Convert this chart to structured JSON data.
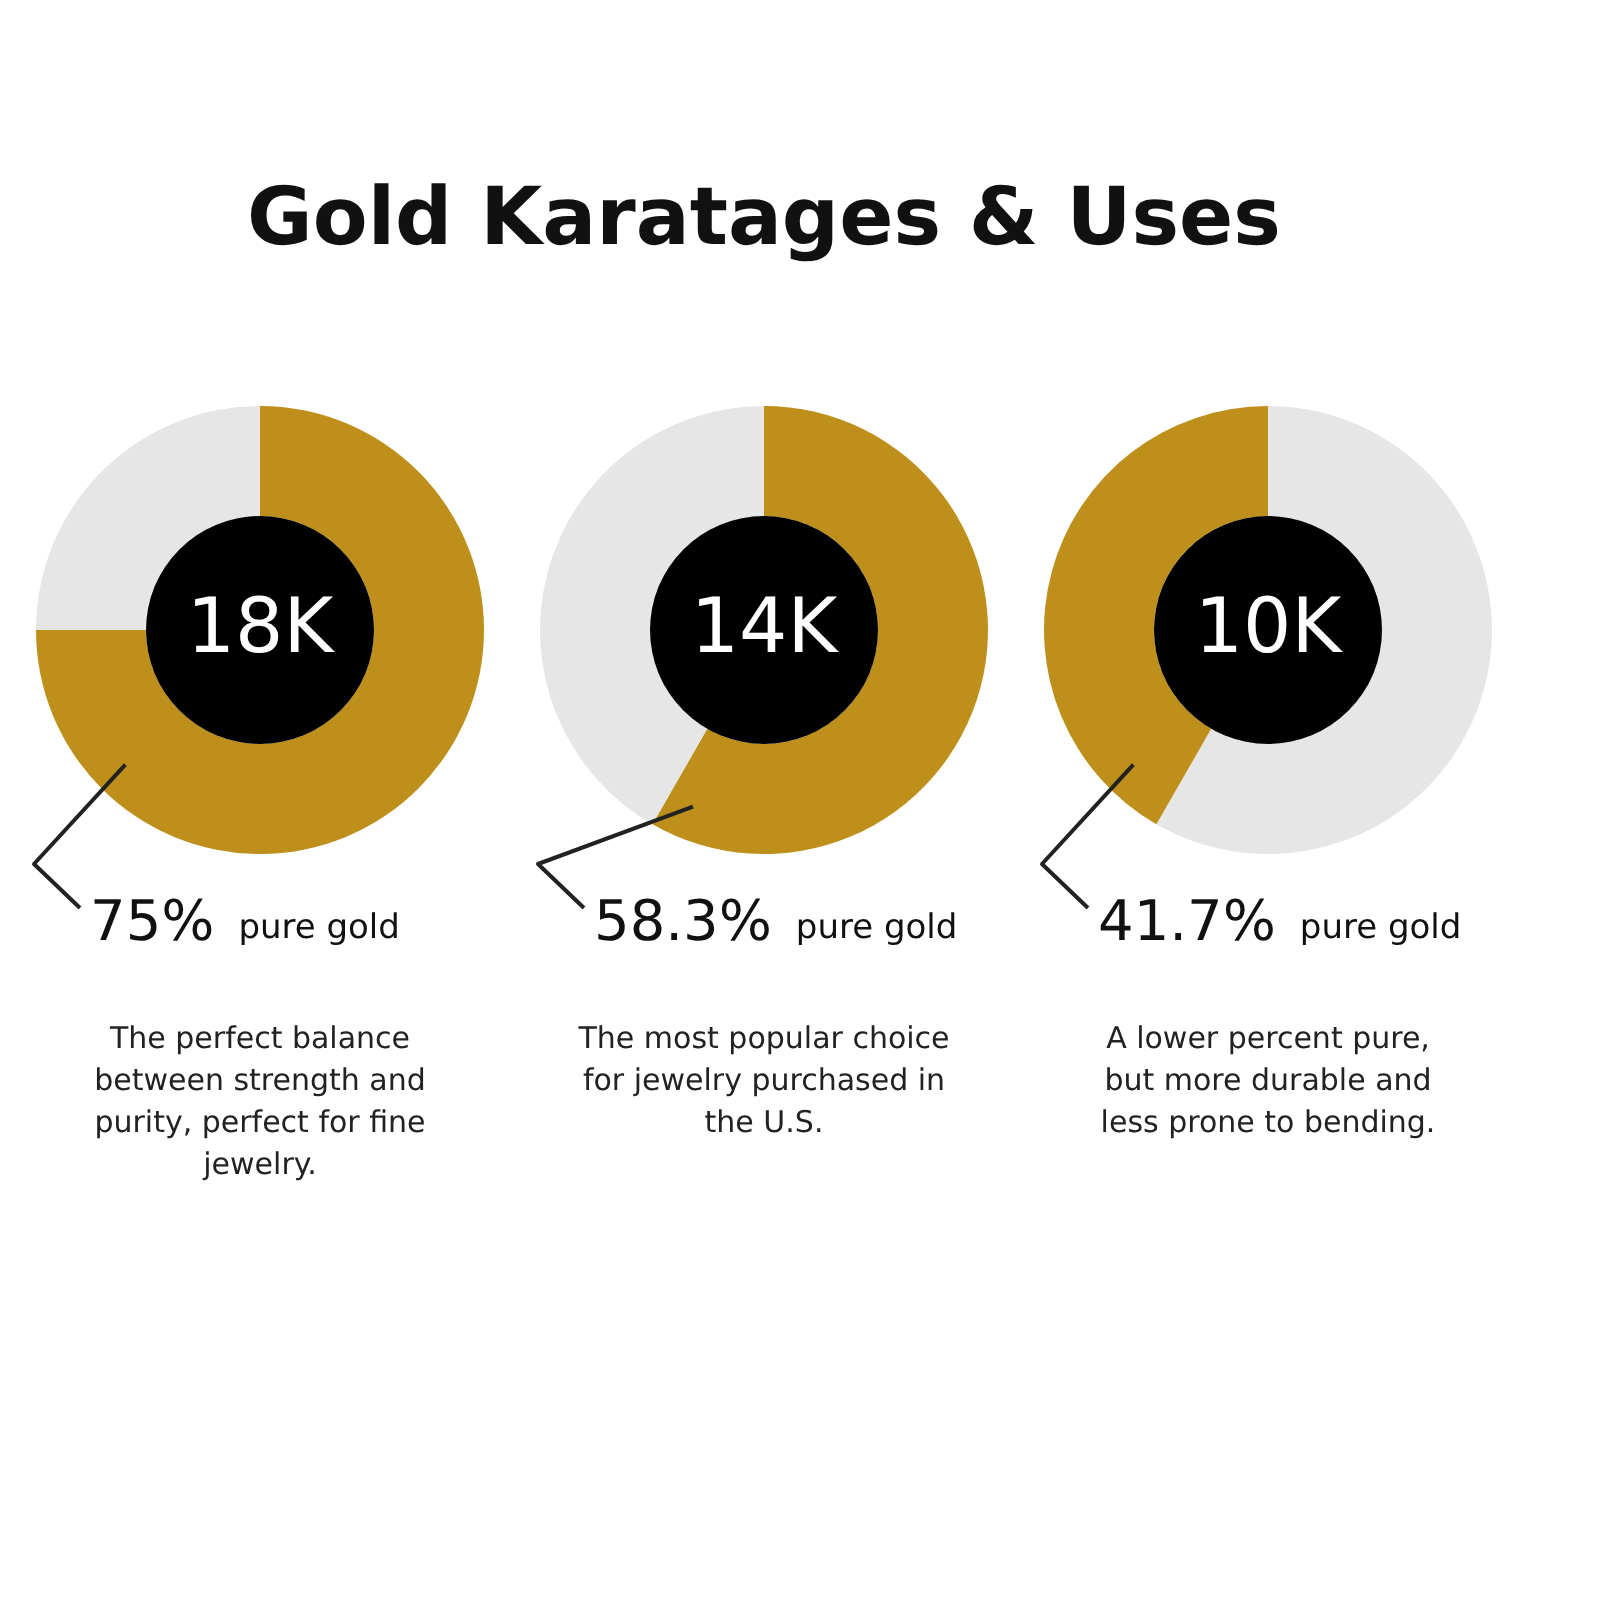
{
  "chart_data": [
    {
      "type": "donut",
      "title": "Gold Karatages & Uses",
      "subtitle": "18K",
      "categories": [
        "pure gold",
        null
      ],
      "values": [
        75,
        25
      ],
      "value_labels": [
        "75%",
        null
      ],
      "colors": [
        "#bf8f1c",
        "#e6e6e6"
      ],
      "annotations": [
        "The perfect balance between strength and purity, perfect for fine jewelry."
      ]
    },
    {
      "type": "donut",
      "subtitle": "14K",
      "categories": [
        "pure gold",
        null
      ],
      "values": [
        58.3,
        41.7
      ],
      "value_labels": [
        "58.3%",
        null
      ],
      "colors": [
        "#bf8f1c",
        "#e6e6e6"
      ],
      "annotations": [
        "The most popular choice for jewelry purchased in the U.S."
      ]
    },
    {
      "type": "donut",
      "subtitle": "10K",
      "categories": [
        null,
        "pure gold"
      ],
      "values": [
        58.3,
        41.7
      ],
      "value_labels": [
        null,
        "41.7%"
      ],
      "colors": [
        "#e6e6e6",
        "#bf8f1c"
      ],
      "annotations": [
        "A lower percent pure, but more durable and less prone to bending."
      ]
    }
  ]
}
